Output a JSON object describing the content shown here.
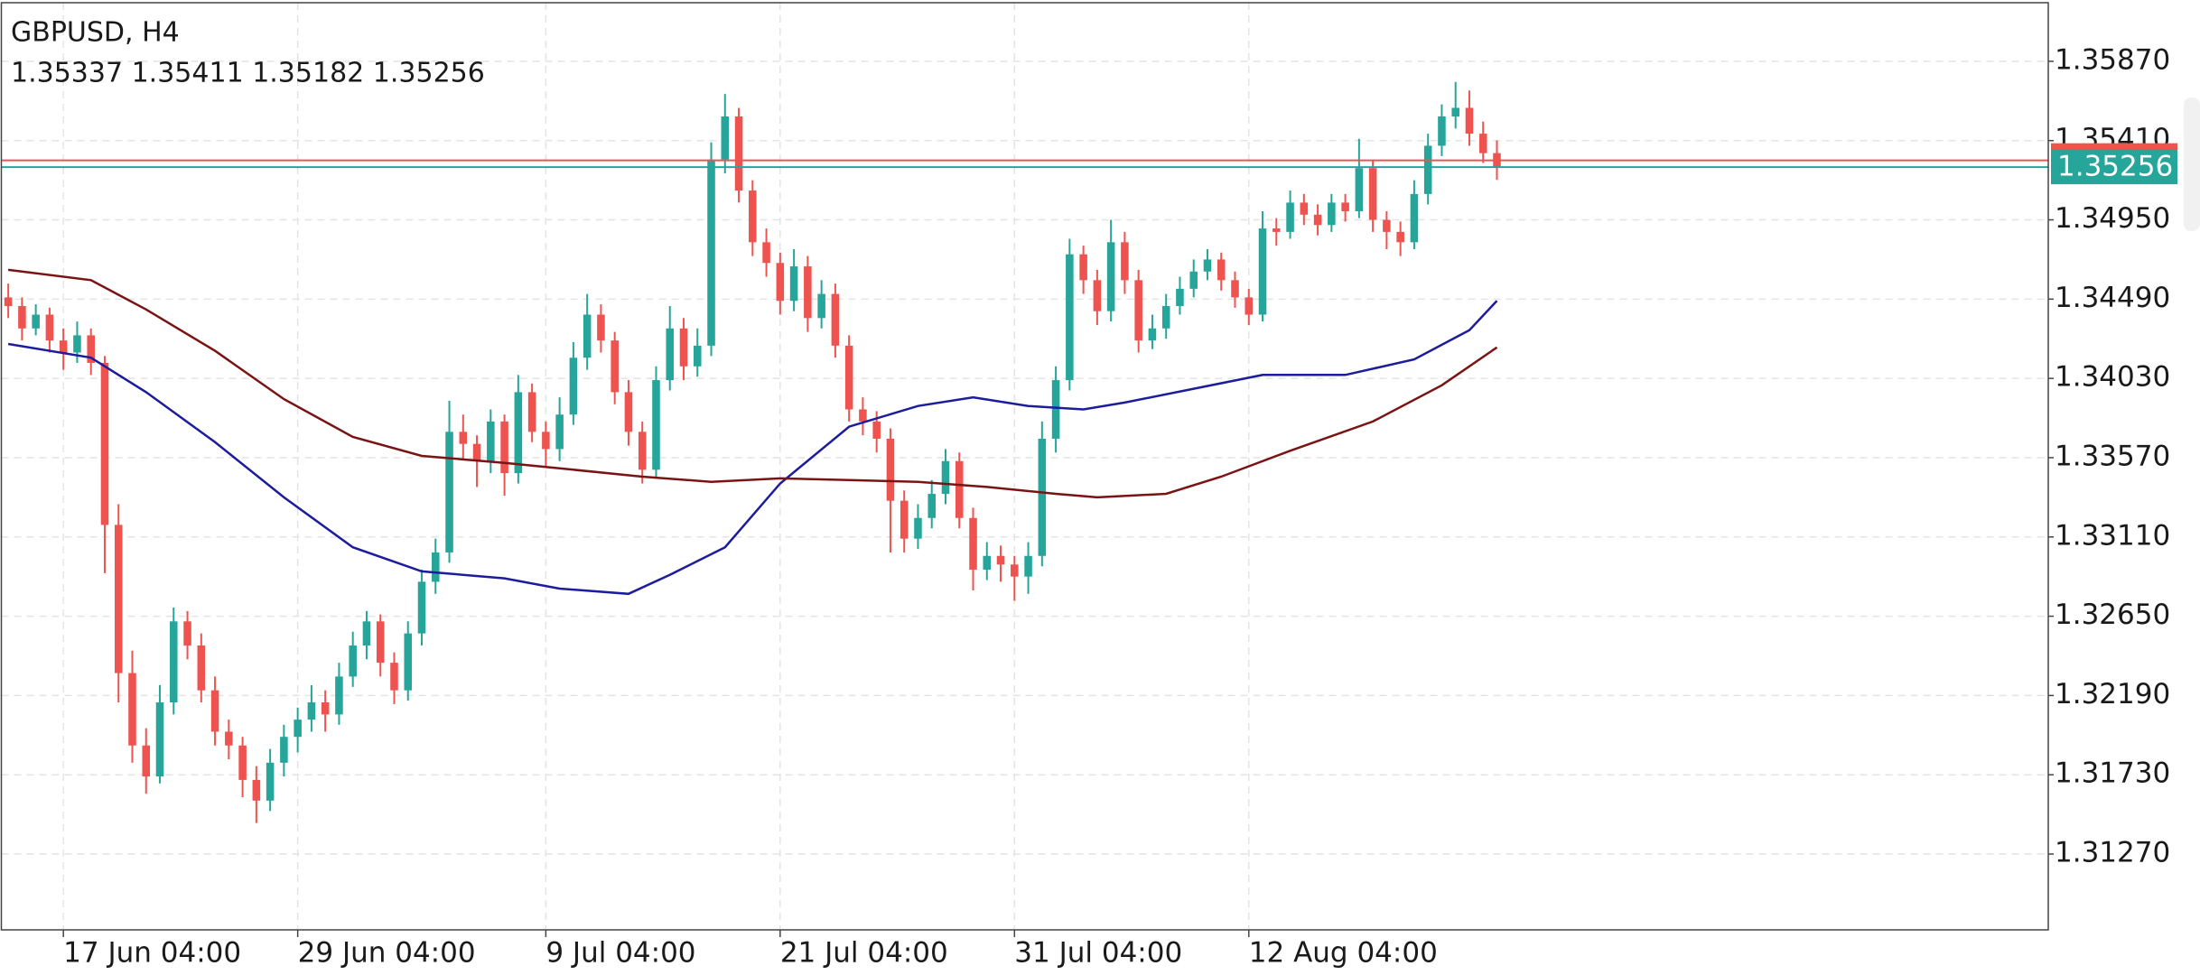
{
  "chart_data": {
    "type": "candlestick",
    "title": "GBPUSD, H4",
    "ohlc_text": "1.35337 1.35411 1.35182 1.35256",
    "up_color": "#26a69a",
    "down_color": "#ef5350",
    "grid": true,
    "xlim": [
      -0.5,
      148
    ],
    "xticks": [
      {
        "value": 4,
        "label": "17 Jun 04:00"
      },
      {
        "value": 21,
        "label": "29 Jun 04:00"
      },
      {
        "value": 39,
        "label": "9 Jul 04:00"
      },
      {
        "value": 56,
        "label": "21 Jul 04:00"
      },
      {
        "value": 73,
        "label": "31 Jul 04:00"
      },
      {
        "value": 90,
        "label": "12 Aug 04:00"
      }
    ],
    "ylim": [
      1.3083,
      1.3621
    ],
    "yticks": [
      {
        "value": 1.3587,
        "label": "1.35870"
      },
      {
        "value": 1.3541,
        "label": "1.35410"
      },
      {
        "value": 1.3495,
        "label": "1.34950"
      },
      {
        "value": 1.3449,
        "label": "1.34490"
      },
      {
        "value": 1.3403,
        "label": "1.34030"
      },
      {
        "value": 1.3357,
        "label": "1.33570"
      },
      {
        "value": 1.3311,
        "label": "1.33110"
      },
      {
        "value": 1.3265,
        "label": "1.32650"
      },
      {
        "value": 1.3219,
        "label": "1.32190"
      },
      {
        "value": 1.3173,
        "label": "1.31730"
      },
      {
        "value": 1.3127,
        "label": "1.31270"
      }
    ],
    "bid": {
      "value": 1.35256,
      "label": "1.35256",
      "color": "#26a69a"
    },
    "ask": {
      "value": 1.35295,
      "color": "#ef5350"
    },
    "candles": [
      [
        1.345,
        1.3458,
        1.3438,
        1.3445
      ],
      [
        1.3445,
        1.345,
        1.3425,
        1.3432
      ],
      [
        1.3432,
        1.3446,
        1.3428,
        1.344
      ],
      [
        1.344,
        1.3444,
        1.3418,
        1.3425
      ],
      [
        1.3425,
        1.3432,
        1.3408,
        1.3418
      ],
      [
        1.3418,
        1.3436,
        1.3412,
        1.3428
      ],
      [
        1.3428,
        1.3432,
        1.3405,
        1.3412
      ],
      [
        1.3412,
        1.3416,
        1.329,
        1.3318
      ],
      [
        1.3318,
        1.333,
        1.3215,
        1.3232
      ],
      [
        1.3232,
        1.3245,
        1.318,
        1.319
      ],
      [
        1.319,
        1.32,
        1.3162,
        1.3172
      ],
      [
        1.3172,
        1.3225,
        1.3168,
        1.3215
      ],
      [
        1.3215,
        1.327,
        1.3208,
        1.3262
      ],
      [
        1.3262,
        1.3268,
        1.324,
        1.3248
      ],
      [
        1.3248,
        1.3255,
        1.3215,
        1.3222
      ],
      [
        1.3222,
        1.323,
        1.319,
        1.3198
      ],
      [
        1.3198,
        1.3205,
        1.3182,
        1.319
      ],
      [
        1.319,
        1.3195,
        1.316,
        1.317
      ],
      [
        1.317,
        1.3178,
        1.3145,
        1.3158
      ],
      [
        1.3158,
        1.3188,
        1.3152,
        1.318
      ],
      [
        1.318,
        1.3202,
        1.3172,
        1.3195
      ],
      [
        1.3195,
        1.3212,
        1.3186,
        1.3205
      ],
      [
        1.3205,
        1.3225,
        1.3198,
        1.3215
      ],
      [
        1.3215,
        1.3222,
        1.3198,
        1.3208
      ],
      [
        1.3208,
        1.3238,
        1.3202,
        1.323
      ],
      [
        1.323,
        1.3256,
        1.3224,
        1.3248
      ],
      [
        1.3248,
        1.3268,
        1.324,
        1.3262
      ],
      [
        1.3262,
        1.3266,
        1.323,
        1.3238
      ],
      [
        1.3238,
        1.3244,
        1.3214,
        1.3222
      ],
      [
        1.3222,
        1.3262,
        1.3216,
        1.3255
      ],
      [
        1.3255,
        1.3292,
        1.3248,
        1.3285
      ],
      [
        1.3285,
        1.331,
        1.3278,
        1.3302
      ],
      [
        1.3302,
        1.339,
        1.3296,
        1.3372
      ],
      [
        1.3372,
        1.3382,
        1.3356,
        1.3365
      ],
      [
        1.3365,
        1.337,
        1.334,
        1.3355
      ],
      [
        1.3355,
        1.3385,
        1.3348,
        1.3378
      ],
      [
        1.3378,
        1.3382,
        1.3335,
        1.3348
      ],
      [
        1.3348,
        1.3405,
        1.3342,
        1.3395
      ],
      [
        1.3395,
        1.34,
        1.3366,
        1.3372
      ],
      [
        1.3372,
        1.3378,
        1.3352,
        1.3362
      ],
      [
        1.3362,
        1.3392,
        1.3355,
        1.3382
      ],
      [
        1.3382,
        1.3424,
        1.3376,
        1.3415
      ],
      [
        1.3415,
        1.3452,
        1.3408,
        1.344
      ],
      [
        1.344,
        1.3446,
        1.3418,
        1.3425
      ],
      [
        1.3425,
        1.343,
        1.3388,
        1.3395
      ],
      [
        1.3395,
        1.3402,
        1.3364,
        1.3372
      ],
      [
        1.3372,
        1.3378,
        1.3342,
        1.335
      ],
      [
        1.335,
        1.341,
        1.3346,
        1.3402
      ],
      [
        1.3402,
        1.3445,
        1.3396,
        1.3432
      ],
      [
        1.3432,
        1.3438,
        1.3402,
        1.341
      ],
      [
        1.341,
        1.3432,
        1.3404,
        1.3422
      ],
      [
        1.3422,
        1.354,
        1.3416,
        1.353
      ],
      [
        1.353,
        1.3568,
        1.3522,
        1.3555
      ],
      [
        1.3555,
        1.356,
        1.3505,
        1.3512
      ],
      [
        1.3512,
        1.3518,
        1.3474,
        1.3482
      ],
      [
        1.3482,
        1.349,
        1.3462,
        1.347
      ],
      [
        1.347,
        1.3476,
        1.344,
        1.3448
      ],
      [
        1.3448,
        1.3478,
        1.3442,
        1.3468
      ],
      [
        1.3468,
        1.3474,
        1.343,
        1.3438
      ],
      [
        1.3438,
        1.346,
        1.3432,
        1.3452
      ],
      [
        1.3452,
        1.3458,
        1.3415,
        1.3422
      ],
      [
        1.3422,
        1.3428,
        1.3378,
        1.3385
      ],
      [
        1.3385,
        1.3392,
        1.337,
        1.3378
      ],
      [
        1.3378,
        1.3384,
        1.336,
        1.3368
      ],
      [
        1.3368,
        1.3374,
        1.3302,
        1.3332
      ],
      [
        1.3332,
        1.3338,
        1.3302,
        1.331
      ],
      [
        1.331,
        1.333,
        1.3304,
        1.3322
      ],
      [
        1.3322,
        1.3344,
        1.3316,
        1.3336
      ],
      [
        1.3336,
        1.3362,
        1.333,
        1.3355
      ],
      [
        1.3355,
        1.336,
        1.3316,
        1.3322
      ],
      [
        1.3322,
        1.3328,
        1.328,
        1.3292
      ],
      [
        1.3292,
        1.3308,
        1.3286,
        1.33
      ],
      [
        1.33,
        1.3306,
        1.3285,
        1.3295
      ],
      [
        1.3295,
        1.33,
        1.3274,
        1.3288
      ],
      [
        1.3288,
        1.3308,
        1.3278,
        1.33
      ],
      [
        1.33,
        1.3378,
        1.3294,
        1.3368
      ],
      [
        1.3368,
        1.341,
        1.336,
        1.3402
      ],
      [
        1.3402,
        1.3484,
        1.3396,
        1.3475
      ],
      [
        1.3475,
        1.348,
        1.3452,
        1.346
      ],
      [
        1.346,
        1.3466,
        1.3434,
        1.3442
      ],
      [
        1.3442,
        1.3495,
        1.3436,
        1.3482
      ],
      [
        1.3482,
        1.3488,
        1.3452,
        1.346
      ],
      [
        1.346,
        1.3466,
        1.3418,
        1.3425
      ],
      [
        1.3425,
        1.344,
        1.342,
        1.3432
      ],
      [
        1.3432,
        1.3452,
        1.3426,
        1.3445
      ],
      [
        1.3445,
        1.3462,
        1.344,
        1.3455
      ],
      [
        1.3455,
        1.3472,
        1.345,
        1.3465
      ],
      [
        1.3465,
        1.3478,
        1.346,
        1.3472
      ],
      [
        1.3472,
        1.3476,
        1.3454,
        1.346
      ],
      [
        1.346,
        1.3465,
        1.3444,
        1.345
      ],
      [
        1.345,
        1.3455,
        1.3434,
        1.344
      ],
      [
        1.344,
        1.35,
        1.3436,
        1.349
      ],
      [
        1.349,
        1.3496,
        1.348,
        1.3488
      ],
      [
        1.3488,
        1.3512,
        1.3484,
        1.3505
      ],
      [
        1.3505,
        1.351,
        1.3492,
        1.3498
      ],
      [
        1.3498,
        1.3504,
        1.3486,
        1.3492
      ],
      [
        1.3492,
        1.351,
        1.3488,
        1.3505
      ],
      [
        1.3505,
        1.351,
        1.3494,
        1.35
      ],
      [
        1.35,
        1.3542,
        1.3496,
        1.3525
      ],
      [
        1.3525,
        1.353,
        1.3488,
        1.3495
      ],
      [
        1.3495,
        1.35,
        1.3478,
        1.3488
      ],
      [
        1.3488,
        1.3494,
        1.3474,
        1.3482
      ],
      [
        1.3482,
        1.3518,
        1.3478,
        1.351
      ],
      [
        1.351,
        1.3545,
        1.3504,
        1.3538
      ],
      [
        1.3538,
        1.3562,
        1.3532,
        1.3555
      ],
      [
        1.3555,
        1.3575,
        1.3548,
        1.356
      ],
      [
        1.356,
        1.357,
        1.3538,
        1.3545
      ],
      [
        1.3545,
        1.3552,
        1.3528,
        1.35337
      ],
      [
        1.35337,
        1.35411,
        1.35182,
        1.35256
      ]
    ],
    "series": [
      {
        "color": "#1c1c9c",
        "x": [
          0,
          6,
          10,
          15,
          20,
          25,
          30,
          36,
          40,
          45,
          48,
          52,
          56,
          61,
          66,
          70,
          74,
          78,
          81,
          86,
          91,
          97,
          102,
          106,
          108
        ],
        "values": [
          1.3423,
          1.3415,
          1.3395,
          1.3366,
          1.3334,
          1.3305,
          1.3291,
          1.3287,
          1.3281,
          1.3278,
          1.3289,
          1.3305,
          1.3342,
          1.3375,
          1.3387,
          1.3392,
          1.3387,
          1.3385,
          1.3389,
          1.3397,
          1.3405,
          1.3405,
          1.3414,
          1.3431,
          1.3448
        ]
      },
      {
        "color": "#7a1414",
        "x": [
          0,
          6,
          10,
          15,
          20,
          25,
          30,
          36,
          41,
          46,
          51,
          56,
          61,
          66,
          71,
          76,
          79,
          84,
          88,
          93,
          99,
          104,
          108
        ],
        "values": [
          1.3466,
          1.346,
          1.3443,
          1.3419,
          1.3391,
          1.3369,
          1.3358,
          1.3354,
          1.335,
          1.3346,
          1.3343,
          1.3345,
          1.3344,
          1.3343,
          1.334,
          1.3336,
          1.3334,
          1.3336,
          1.3346,
          1.3361,
          1.3378,
          1.3399,
          1.3421
        ]
      }
    ]
  }
}
